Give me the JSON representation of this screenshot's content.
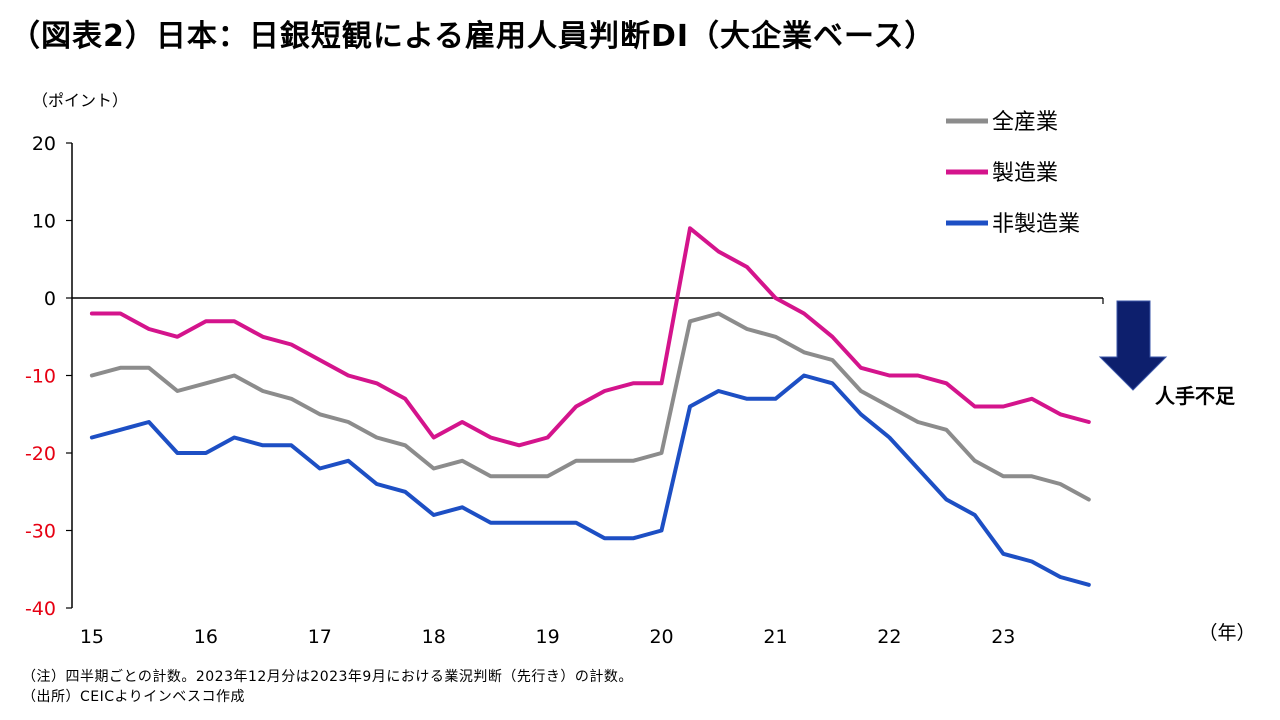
{
  "chart_data": {
    "type": "line",
    "title": "（図表2）日本：日銀短観による雇用人員判断DI（大企業ベース）",
    "ylabel": "（ポイント）",
    "xlabel": "（年）",
    "ylim": [
      -40,
      20
    ],
    "yticks": [
      20,
      10,
      0,
      -10,
      -20,
      -30,
      -40
    ],
    "xlim": [
      14.825,
      23.875
    ],
    "xticks": [
      15,
      16,
      17,
      18,
      19,
      20,
      21,
      22,
      23
    ],
    "negative_tick_color": "#e60012",
    "grid": false,
    "legend_position": "top-right",
    "x": [
      15,
      15.25,
      15.5,
      15.75,
      16,
      16.25,
      16.5,
      16.75,
      17,
      17.25,
      17.5,
      17.75,
      18,
      18.25,
      18.5,
      18.75,
      19,
      19.25,
      19.5,
      19.75,
      20,
      20.25,
      20.5,
      20.75,
      21,
      21.25,
      21.5,
      21.75,
      22,
      22.25,
      22.5,
      22.75,
      23,
      23.25,
      23.5,
      23.75
    ],
    "series": [
      {
        "name": "全産業",
        "color": "#8c8c8c",
        "values": [
          -10,
          -9,
          -9,
          -12,
          -11,
          -10,
          -12,
          -13,
          -15,
          -16,
          -18,
          -19,
          -22,
          -21,
          -23,
          -23,
          -23,
          -21,
          -21,
          -21,
          -20,
          -3,
          -2,
          -4,
          -5,
          -7,
          -8,
          -12,
          -14,
          -16,
          -17,
          -21,
          -23,
          -23,
          -24,
          -26
        ]
      },
      {
        "name": "製造業",
        "color": "#d4148c",
        "values": [
          -2,
          -2,
          -4,
          -5,
          -3,
          -3,
          -5,
          -6,
          -8,
          -10,
          -11,
          -13,
          -18,
          -16,
          -18,
          -19,
          -18,
          -14,
          -12,
          -11,
          -11,
          9,
          6,
          4,
          0,
          -2,
          -5,
          -9,
          -10,
          -10,
          -11,
          -14,
          -14,
          -13,
          -15,
          -16
        ]
      },
      {
        "name": "非製造業",
        "color": "#1d4fc4",
        "values": [
          -18,
          -17,
          -16,
          -20,
          -20,
          -18,
          -19,
          -19,
          -22,
          -21,
          -24,
          -25,
          -28,
          -27,
          -29,
          -29,
          -29,
          -29,
          -31,
          -31,
          -30,
          -14,
          -12,
          -13,
          -13,
          -10,
          -11,
          -15,
          -18,
          -22,
          -26,
          -28,
          -33,
          -34,
          -36,
          -37
        ]
      }
    ]
  },
  "annotation": {
    "label": "人手不足",
    "icon": "down-arrow-icon",
    "color": "#0d1f6d"
  },
  "notes": {
    "note": "（注）四半期ごとの計数。2023年12月分は2023年9月における業況判断（先行き）の計数。",
    "source": "（出所）CEICよりインベスコ作成"
  }
}
